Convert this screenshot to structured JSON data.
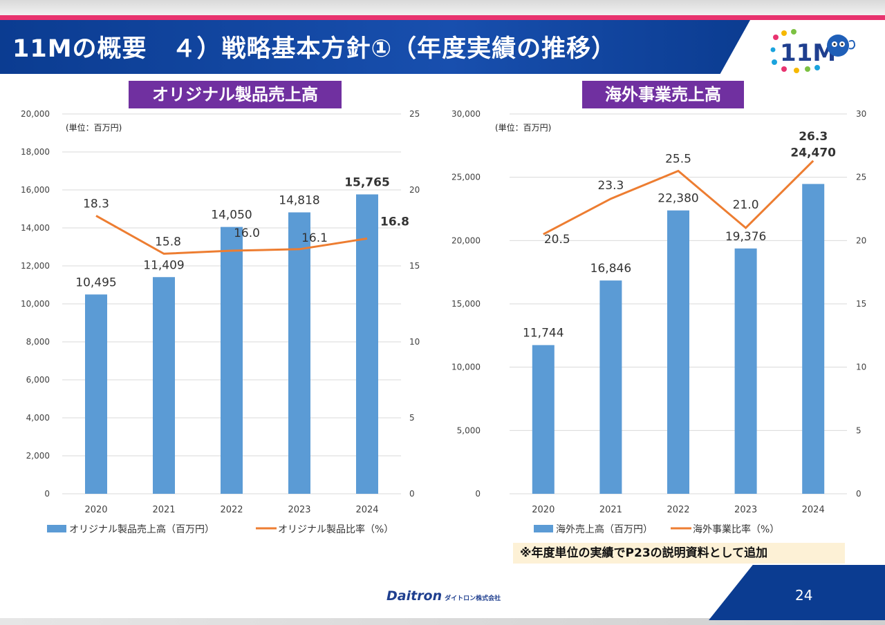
{
  "title": "11Mの概要　４）戦略基本方針①（年度実績の推移）",
  "brand": {
    "logo_text": "11M",
    "company_name": "Daitron",
    "company_suffix": "ダイトロン株式会社"
  },
  "page_number": "24",
  "note": "※年度単位の実績でP23の説明資料として追加",
  "colors": {
    "bar": "#5b9bd5",
    "line": "#ed7d31",
    "title_bg": "#0b3c91",
    "accent_pink": "#e8336f",
    "section_label_bg": "#7030a0"
  },
  "chart_data": [
    {
      "type": "bar",
      "section_label": "オリジナル製品売上高",
      "unit_label": "(単位：百万円)",
      "categories": [
        "2020",
        "2021",
        "2022",
        "2023",
        "2024"
      ],
      "y_left": {
        "min": 0,
        "max": 20000,
        "step": 2000
      },
      "y_right": {
        "min": 0,
        "max": 25,
        "step": 5
      },
      "series": [
        {
          "name": "オリジナル製品売上高（百万円）",
          "kind": "bar",
          "axis": "left",
          "values": [
            10495,
            11409,
            14050,
            14818,
            15765
          ],
          "labels": [
            "10,495",
            "11,409",
            "14,050",
            "14,818",
            "15,765"
          ]
        },
        {
          "name": "オリジナル製品比率（%）",
          "kind": "line",
          "axis": "right",
          "values": [
            18.3,
            15.8,
            16.0,
            16.1,
            16.8
          ],
          "labels": [
            "18.3",
            "15.8",
            "16.0",
            "16.1",
            "16.8"
          ]
        }
      ],
      "legend_position": "bottom",
      "grid": true
    },
    {
      "type": "bar",
      "section_label": "海外事業売上高",
      "unit_label": "(単位：百万円)",
      "categories": [
        "2020",
        "2021",
        "2022",
        "2023",
        "2024"
      ],
      "y_left": {
        "min": 0,
        "max": 30000,
        "step": 5000
      },
      "y_right": {
        "min": 0,
        "max": 30,
        "step": 5
      },
      "series": [
        {
          "name": "海外売上高（百万円）",
          "kind": "bar",
          "axis": "left",
          "values": [
            11744,
            16846,
            22380,
            19376,
            24470
          ],
          "labels": [
            "11,744",
            "16,846",
            "22,380",
            "19,376",
            "24,470"
          ]
        },
        {
          "name": "海外事業比率（%）",
          "kind": "line",
          "axis": "right",
          "values": [
            20.5,
            23.3,
            25.5,
            21.0,
            26.3
          ],
          "labels": [
            "20.5",
            "23.3",
            "25.5",
            "21.0",
            "26.3"
          ]
        }
      ],
      "legend_position": "bottom",
      "grid": true
    }
  ]
}
